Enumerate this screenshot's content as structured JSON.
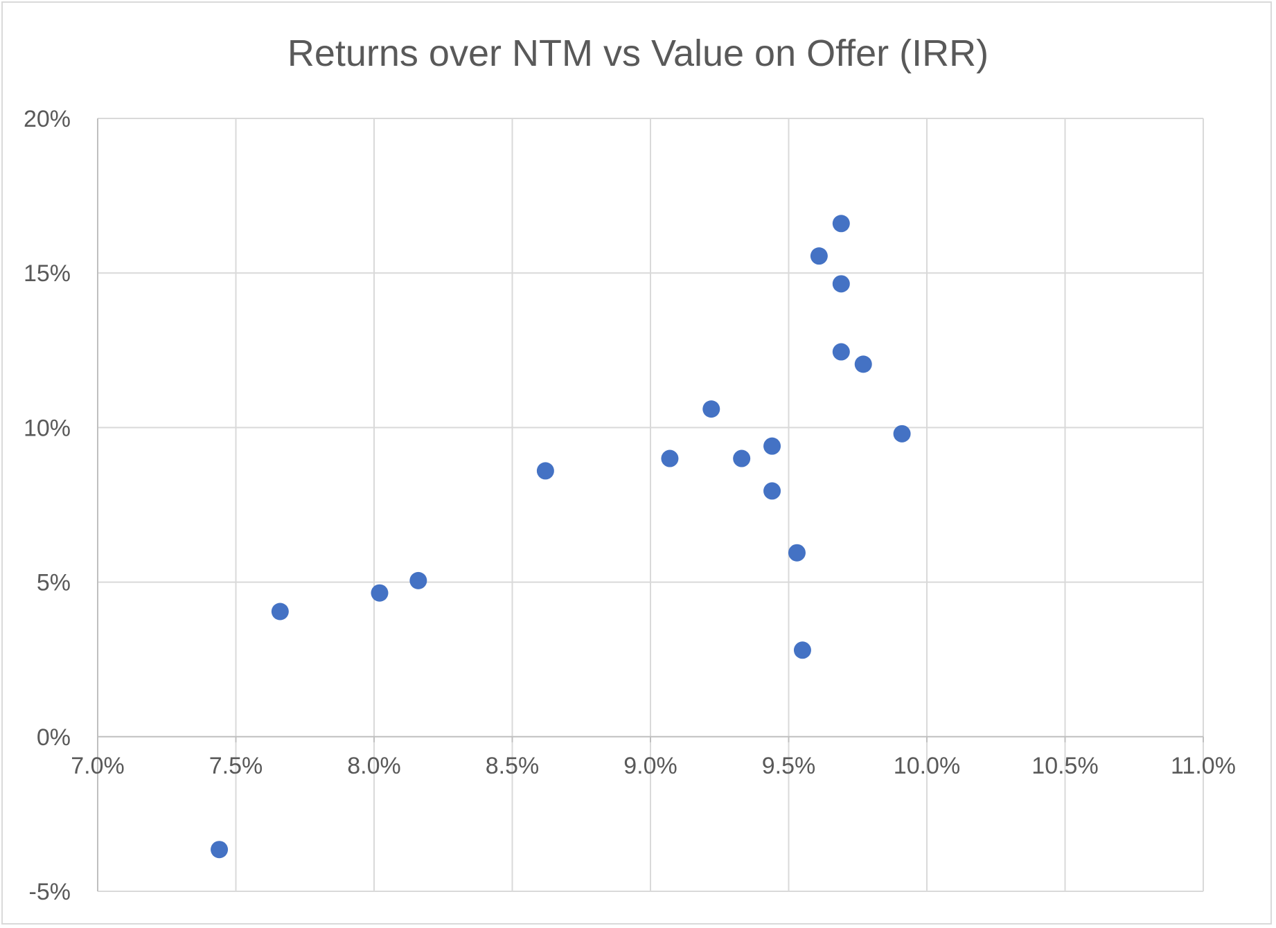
{
  "chart_data": {
    "type": "scatter",
    "title": "Returns over NTM vs Value on Offer (IRR)",
    "xlabel": "",
    "ylabel": "",
    "xlim": [
      7.0,
      11.0
    ],
    "ylim": [
      -5,
      20
    ],
    "x_ticks": [
      "7.0%",
      "7.5%",
      "8.0%",
      "8.5%",
      "9.0%",
      "9.5%",
      "10.0%",
      "10.5%",
      "11.0%"
    ],
    "x_tick_values": [
      7.0,
      7.5,
      8.0,
      8.5,
      9.0,
      9.5,
      10.0,
      10.5,
      11.0
    ],
    "y_ticks": [
      "-5%",
      "0%",
      "5%",
      "10%",
      "15%",
      "20%"
    ],
    "y_tick_values": [
      -5,
      0,
      5,
      10,
      15,
      20
    ],
    "grid": true,
    "legend": "none",
    "marker_color": "#4472c4",
    "series": [
      {
        "points": [
          {
            "x": 7.44,
            "y": -3.65
          },
          {
            "x": 7.66,
            "y": 4.05
          },
          {
            "x": 8.02,
            "y": 4.65
          },
          {
            "x": 8.16,
            "y": 5.05
          },
          {
            "x": 8.62,
            "y": 8.6
          },
          {
            "x": 9.07,
            "y": 9.0
          },
          {
            "x": 9.22,
            "y": 10.6
          },
          {
            "x": 9.33,
            "y": 9.0
          },
          {
            "x": 9.44,
            "y": 9.4
          },
          {
            "x": 9.44,
            "y": 7.95
          },
          {
            "x": 9.53,
            "y": 5.95
          },
          {
            "x": 9.55,
            "y": 2.8
          },
          {
            "x": 9.61,
            "y": 15.55
          },
          {
            "x": 9.69,
            "y": 16.6
          },
          {
            "x": 9.69,
            "y": 14.65
          },
          {
            "x": 9.69,
            "y": 12.45
          },
          {
            "x": 9.77,
            "y": 12.05
          },
          {
            "x": 9.91,
            "y": 9.8
          }
        ]
      }
    ]
  }
}
